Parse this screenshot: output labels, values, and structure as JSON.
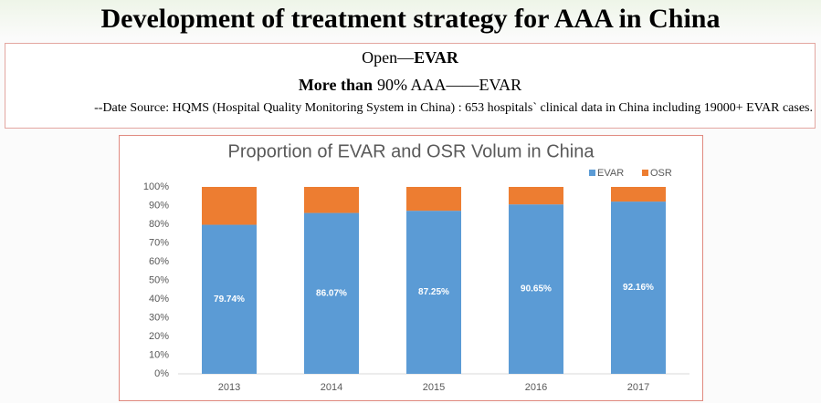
{
  "header": {
    "title": "Development of treatment strategy for AAA in China",
    "line1": [
      "Open—",
      "EVAR"
    ],
    "line2": [
      "More than",
      "90% AAA——EVAR"
    ],
    "source": "--Date Source: HQMS (Hospital Quality Monitoring System in China) : 653 hospitals` clinical data in China including 19000+ EVAR cases."
  },
  "chart_data": {
    "type": "stacked_bar",
    "title": "Proportion of EVAR and OSR Volum in China",
    "categories": [
      "2013",
      "2014",
      "2015",
      "2016",
      "2017"
    ],
    "series": [
      {
        "name": "EVAR",
        "color": "#5b9bd5",
        "values": [
          79.74,
          86.07,
          87.25,
          90.65,
          92.16
        ],
        "value_labels": [
          "79.74%",
          "86.07%",
          "87.25%",
          "90.65%",
          "92.16%"
        ]
      },
      {
        "name": "OSR",
        "color": "#ed7d31",
        "values": [
          20.26,
          13.93,
          12.75,
          9.35,
          7.84
        ]
      }
    ],
    "ylim": [
      0,
      100
    ],
    "yticks": [
      {
        "value": 0,
        "label": "0%"
      },
      {
        "value": 10,
        "label": "10%"
      },
      {
        "value": 20,
        "label": "20%"
      },
      {
        "value": 30,
        "label": "30%"
      },
      {
        "value": 40,
        "label": "40%"
      },
      {
        "value": 50,
        "label": "50%"
      },
      {
        "value": 60,
        "label": "60%"
      },
      {
        "value": 70,
        "label": "70%"
      },
      {
        "value": 80,
        "label": "80%"
      },
      {
        "value": 90,
        "label": "90%"
      },
      {
        "value": 100,
        "label": "100%"
      }
    ],
    "legend": "top-right",
    "grid": false
  }
}
